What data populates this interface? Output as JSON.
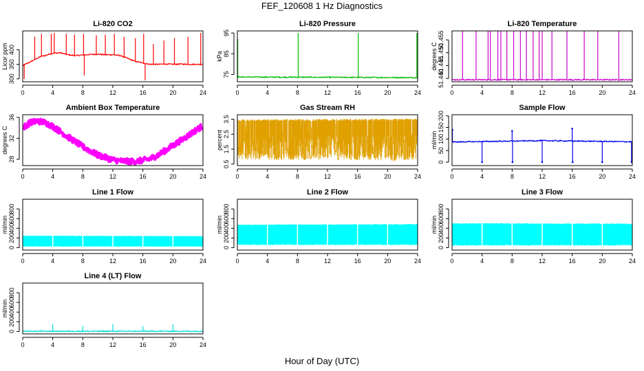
{
  "figure": {
    "title": "FEF_120608  1 Hz Diagnostics",
    "xlabel": "Hour of Day (UTC)"
  },
  "chart_data": [
    {
      "id": "licor-co2",
      "type": "line",
      "title": "Li-820 CO2",
      "ylabel": "Licor ppm",
      "color": "#ff0000",
      "xlim": [
        0,
        24
      ],
      "ylim": [
        290,
        465
      ],
      "xticks": [
        "0",
        "4",
        "8",
        "12",
        "16",
        "20",
        "24"
      ],
      "yticks": [
        "300",
        "350",
        "400"
      ],
      "series": [
        {
          "x": [
            0,
            0.3,
            0.5,
            1,
            1.5,
            2,
            2.5,
            3,
            3.5,
            4,
            5,
            6,
            7,
            8,
            9,
            10,
            11,
            12,
            13,
            14,
            15,
            16,
            16.5,
            17,
            18,
            19,
            20,
            21,
            22,
            23,
            24
          ],
          "y": [
            345,
            350,
            352,
            358,
            365,
            372,
            378,
            380,
            385,
            388,
            390,
            383,
            380,
            382,
            384,
            385,
            383,
            383,
            380,
            370,
            360,
            355,
            352,
            350,
            350,
            351,
            350,
            351,
            350,
            350,
            350
          ]
        }
      ],
      "spikes": [
        {
          "x": 0.2,
          "y": 300
        },
        {
          "x": 1.6,
          "y": 445
        },
        {
          "x": 2.5,
          "y": 455
        },
        {
          "x": 3.8,
          "y": 455
        },
        {
          "x": 4.2,
          "y": 458
        },
        {
          "x": 5.8,
          "y": 455
        },
        {
          "x": 6.9,
          "y": 452
        },
        {
          "x": 8.1,
          "y": 455
        },
        {
          "x": 8.2,
          "y": 312
        },
        {
          "x": 9.8,
          "y": 450
        },
        {
          "x": 11,
          "y": 452
        },
        {
          "x": 12.2,
          "y": 455
        },
        {
          "x": 13.5,
          "y": 445
        },
        {
          "x": 15,
          "y": 440
        },
        {
          "x": 16.1,
          "y": 455
        },
        {
          "x": 16.3,
          "y": 295
        },
        {
          "x": 17.4,
          "y": 420
        },
        {
          "x": 18.8,
          "y": 432
        },
        {
          "x": 20.2,
          "y": 440
        },
        {
          "x": 22,
          "y": 445
        },
        {
          "x": 23.7,
          "y": 458
        }
      ]
    },
    {
      "id": "licor-pressure",
      "type": "line",
      "title": "Li-820 Pressure",
      "ylabel": "kPa",
      "color": "#00bb00",
      "xlim": [
        0,
        24
      ],
      "ylim": [
        71.5,
        96
      ],
      "xticks": [
        "0",
        "4",
        "8",
        "12",
        "16",
        "20",
        "24"
      ],
      "yticks": [
        "75",
        "85",
        "95"
      ],
      "series": [
        {
          "x": [
            0,
            24
          ],
          "y": [
            73.8,
            73.5
          ]
        }
      ],
      "spikes": [
        {
          "x": 0.05,
          "y": 92
        },
        {
          "x": 8.1,
          "y": 95
        },
        {
          "x": 16.1,
          "y": 95
        },
        {
          "x": 23.9,
          "y": 95
        }
      ]
    },
    {
      "id": "licor-temperature",
      "type": "line",
      "title": "Li-820 Temperature",
      "ylabel": "degrees C",
      "color": "#cc00cc",
      "xlim": [
        0,
        24
      ],
      "ylim": [
        51.4387,
        51.4585
      ],
      "xticks": [
        "0",
        "4",
        "8",
        "12",
        "16",
        "20",
        "24"
      ],
      "yticks": [
        "51.440",
        "51.445",
        "51.450",
        "51.455"
      ],
      "series": [
        {
          "x": [
            0,
            24
          ],
          "y": [
            51.4395,
            51.4395
          ]
        }
      ],
      "spikes": [
        {
          "x": 1.4,
          "y": 51.4585
        },
        {
          "x": 3.2,
          "y": 51.4585
        },
        {
          "x": 4.8,
          "y": 51.4585
        },
        {
          "x": 5.1,
          "y": 51.4585
        },
        {
          "x": 6.1,
          "y": 51.4585
        },
        {
          "x": 6.5,
          "y": 51.4585
        },
        {
          "x": 7.3,
          "y": 51.4585
        },
        {
          "x": 8.2,
          "y": 51.4585
        },
        {
          "x": 9.1,
          "y": 51.4585
        },
        {
          "x": 9.9,
          "y": 51.4585
        },
        {
          "x": 10.8,
          "y": 51.4585
        },
        {
          "x": 11.6,
          "y": 51.4585
        },
        {
          "x": 12.0,
          "y": 51.4585
        },
        {
          "x": 13.3,
          "y": 51.4585
        },
        {
          "x": 15.3,
          "y": 51.4585
        },
        {
          "x": 17.6,
          "y": 51.4585
        },
        {
          "x": 19.4,
          "y": 51.4585
        },
        {
          "x": 22.2,
          "y": 51.4585
        }
      ]
    },
    {
      "id": "ambient-box-temp",
      "type": "line",
      "title": "Ambient Box Temperature",
      "ylabel": "degrees C",
      "color": "#ff00ff",
      "xlim": [
        0,
        24
      ],
      "ylim": [
        26.8,
        36.5
      ],
      "xticks": [
        "0",
        "4",
        "8",
        "12",
        "16",
        "20",
        "24"
      ],
      "yticks": [
        "28",
        "32",
        "36"
      ],
      "band": 0.55,
      "series": [
        {
          "x": [
            0,
            1,
            2,
            3,
            4,
            6,
            8,
            10,
            12,
            13,
            14,
            15,
            16,
            17,
            18,
            20,
            22,
            23,
            24
          ],
          "y": [
            34.0,
            35.0,
            35.3,
            35.0,
            34.3,
            32.3,
            30.4,
            28.8,
            27.9,
            27.7,
            27.6,
            27.6,
            27.8,
            28.1,
            28.8,
            30.6,
            32.5,
            33.5,
            34.4
          ]
        }
      ]
    },
    {
      "id": "gas-stream-rh",
      "type": "area",
      "title": "Gas Stream RH",
      "ylabel": "percent",
      "color": "#e0a000",
      "xlim": [
        0,
        24
      ],
      "ylim": [
        0.4,
        3.8
      ],
      "xticks": [
        "0",
        "4",
        "8",
        "12",
        "16",
        "20",
        "24"
      ],
      "yticks": [
        "0.5",
        "1.5",
        "2.5",
        "3.5"
      ],
      "series": [
        {
          "x": [
            0,
            24
          ],
          "upper": [
            3.5,
            3.55
          ],
          "lower": [
            0.8,
            0.7
          ]
        }
      ]
    },
    {
      "id": "sample-flow",
      "type": "line",
      "title": "Sample Flow",
      "ylabel": "ml/min",
      "color": "#0000ee",
      "xlim": [
        0,
        24
      ],
      "ylim": [
        -15,
        205
      ],
      "xticks": [
        "0",
        "4",
        "8",
        "12",
        "16",
        "20",
        "24"
      ],
      "yticks": [
        "0",
        "50",
        "100",
        "150",
        "200"
      ],
      "series": [
        {
          "x": [
            0,
            12,
            24
          ],
          "y": [
            87,
            93,
            88
          ]
        }
      ],
      "spikes": [
        {
          "x": 0.05,
          "y": 140
        },
        {
          "x": 4.0,
          "y": 0
        },
        {
          "x": 8.0,
          "y": 135
        },
        {
          "x": 8.05,
          "y": 0
        },
        {
          "x": 12.0,
          "y": 0
        },
        {
          "x": 16.0,
          "y": 145
        },
        {
          "x": 16.05,
          "y": 0
        },
        {
          "x": 20.0,
          "y": 0
        },
        {
          "x": 23.9,
          "y": 0
        }
      ]
    },
    {
      "id": "line1-flow",
      "type": "area",
      "title": "Line 1 Flow",
      "ylabel": "ml/min",
      "color": "#00ffff",
      "xlim": [
        0,
        24
      ],
      "ylim": [
        -50,
        1000
      ],
      "xticks": [
        "0",
        "4",
        "8",
        "12",
        "16",
        "20",
        "24"
      ],
      "yticks": [
        "0",
        "200",
        "400",
        "600",
        "800"
      ],
      "series": [
        {
          "x": [
            0,
            24
          ],
          "upper": [
            250,
            240
          ],
          "lower": [
            20,
            20
          ]
        }
      ]
    },
    {
      "id": "line2-flow",
      "type": "area",
      "title": "Line 2 Flow",
      "ylabel": "ml/min",
      "color": "#00ffff",
      "xlim": [
        0,
        24
      ],
      "ylim": [
        -50,
        1000
      ],
      "xticks": [
        "0",
        "4",
        "8",
        "12",
        "16",
        "20",
        "24"
      ],
      "yticks": [
        "0",
        "200",
        "400",
        "600",
        "800"
      ],
      "series": [
        {
          "x": [
            0,
            24
          ],
          "upper": [
            480,
            490
          ],
          "lower": [
            50,
            50
          ]
        }
      ]
    },
    {
      "id": "line3-flow",
      "type": "area",
      "title": "Line 3 Flow",
      "ylabel": "ml/min",
      "color": "#00ffff",
      "xlim": [
        0,
        24
      ],
      "ylim": [
        -50,
        1000
      ],
      "xticks": [
        "0",
        "4",
        "8",
        "12",
        "16",
        "20",
        "24"
      ],
      "yticks": [
        "0",
        "200",
        "400",
        "600",
        "800"
      ],
      "series": [
        {
          "x": [
            0,
            24
          ],
          "upper": [
            510,
            500
          ],
          "lower": [
            40,
            40
          ]
        }
      ]
    },
    {
      "id": "line4-flow",
      "type": "line",
      "title": "Line 4 (LT) Flow",
      "ylabel": "ml/min",
      "color": "#00dddd",
      "xlim": [
        0,
        24
      ],
      "ylim": [
        -50,
        1000
      ],
      "xticks": [
        "0",
        "4",
        "8",
        "12",
        "16",
        "20",
        "24"
      ],
      "yticks": [
        "0",
        "200",
        "400",
        "600",
        "800"
      ],
      "series": [
        {
          "x": [
            0,
            24
          ],
          "y": [
            5,
            5
          ]
        }
      ],
      "spikes": [
        {
          "x": 4.0,
          "y": 150
        },
        {
          "x": 8.0,
          "y": 110
        },
        {
          "x": 12.0,
          "y": 150
        },
        {
          "x": 16.0,
          "y": 110
        },
        {
          "x": 20.0,
          "y": 150
        },
        {
          "x": 24.0,
          "y": 110
        }
      ]
    }
  ]
}
